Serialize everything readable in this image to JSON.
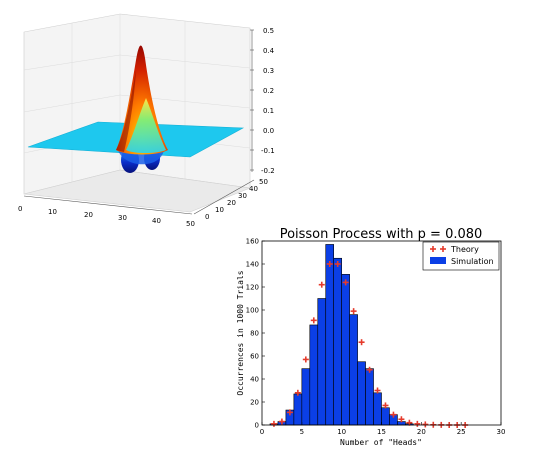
{
  "chart_data": [
    {
      "type": "surface3d",
      "title": "",
      "x_ticks": [
        0,
        10,
        20,
        30,
        40,
        50
      ],
      "y_ticks": [
        0,
        10,
        20,
        30,
        40,
        50
      ],
      "z_ticks": [
        -0.2,
        -0.1,
        0.0,
        0.1,
        0.2,
        0.3,
        0.4,
        0.5
      ],
      "x_tick_labels": [
        "0",
        "10",
        "20",
        "30",
        "40",
        "50"
      ],
      "y_tick_labels": [
        "0",
        "10",
        "20",
        "30",
        "40",
        "50"
      ],
      "z_tick_labels": [
        "-0.2",
        "-0.1",
        "0.0",
        "0.1",
        "0.2",
        "0.3",
        "0.4",
        "0.5"
      ],
      "zlim": [
        -0.2,
        0.5
      ],
      "surface_peak": 0.45,
      "surface_trough": -0.17,
      "colormap": "jet"
    },
    {
      "type": "bar",
      "title": "Poisson Process with p = 0.080",
      "xlabel": "Number of \"Heads\"",
      "ylabel": "Occurrences in 1000 Trials",
      "xlim": [
        0,
        30
      ],
      "ylim": [
        0,
        160
      ],
      "x_ticks": [
        0,
        5,
        10,
        15,
        20,
        25,
        30
      ],
      "y_ticks": [
        0,
        20,
        40,
        60,
        80,
        100,
        120,
        140,
        160
      ],
      "x_tick_labels": [
        "0",
        "5",
        "10",
        "15",
        "20",
        "25",
        "30"
      ],
      "y_tick_labels": [
        "0",
        "20",
        "40",
        "60",
        "80",
        "100",
        "120",
        "140",
        "160"
      ],
      "legend_position": "top-right",
      "categories": [
        1,
        2,
        3,
        4,
        5,
        6,
        7,
        8,
        9,
        10,
        11,
        12,
        13,
        14,
        15,
        16,
        17,
        18
      ],
      "series": [
        {
          "name": "Simulation",
          "kind": "bar",
          "color": "#0b3fe6",
          "values": [
            1,
            3,
            13,
            27,
            49,
            87,
            110,
            157,
            145,
            131,
            96,
            55,
            49,
            28,
            15,
            9,
            3,
            1
          ]
        },
        {
          "name": "Theory",
          "kind": "marker",
          "color": "#e53b2c",
          "x": [
            1,
            2,
            3,
            4,
            5,
            6,
            7,
            8,
            9,
            10,
            11,
            12,
            13,
            14,
            15,
            16,
            17,
            18,
            19,
            20,
            21,
            22,
            23,
            24,
            25
          ],
          "values": [
            1,
            3,
            11,
            28,
            57,
            91,
            122,
            140,
            140,
            124,
            99,
            72,
            48,
            30,
            17,
            9,
            5,
            2,
            1,
            0.5,
            0.2,
            0.1,
            0,
            0,
            0
          ]
        }
      ]
    }
  ]
}
